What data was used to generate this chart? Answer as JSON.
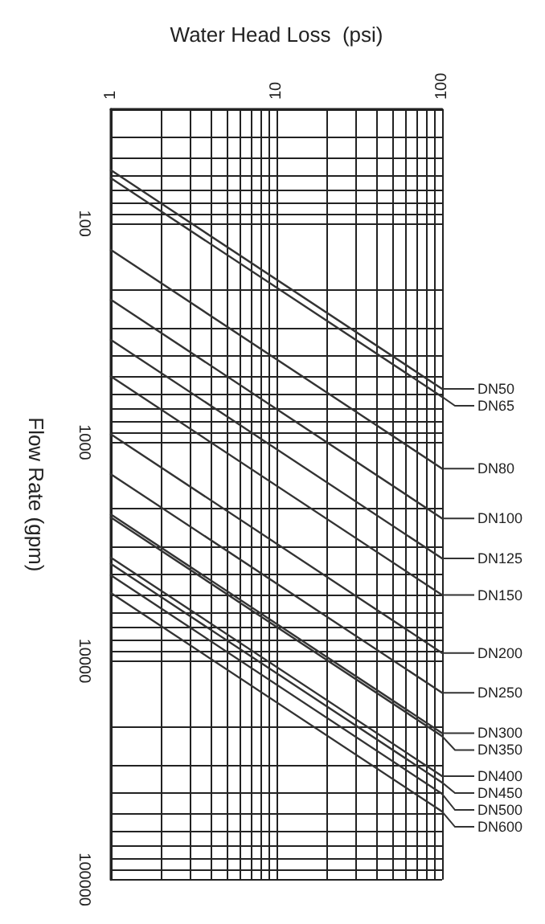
{
  "chart_data": {
    "type": "line",
    "xlabel": "Water Head Loss  (psi)",
    "ylabel": "Flow Rate (gpm)",
    "log": "xy",
    "x": [
      1,
      100
    ],
    "xlim": [
      1,
      100
    ],
    "xticks": [
      1,
      10,
      100
    ],
    "ylim": [
      100000,
      30
    ],
    "yticks": [
      100,
      1000,
      10000,
      100000
    ],
    "grid": true,
    "legend": "right",
    "marker": "none",
    "line_style": "solid",
    "series": [
      {
        "name": "DN50",
        "color": "#333333",
        "values": [
          57,
          570
        ]
      },
      {
        "name": "DN65",
        "color": "#333333",
        "values": [
          62,
          620
        ]
      },
      {
        "name": "DN80",
        "color": "#333333",
        "values": [
          132,
          1320
        ]
      },
      {
        "name": "DN100",
        "color": "#333333",
        "values": [
          223,
          2230
        ]
      },
      {
        "name": "DN125",
        "color": "#333333",
        "values": [
          340,
          3400
        ]
      },
      {
        "name": "DN150",
        "color": "#333333",
        "values": [
          500,
          5000
        ]
      },
      {
        "name": "DN200",
        "color": "#333333",
        "values": [
          920,
          9200
        ]
      },
      {
        "name": "DN250",
        "color": "#333333",
        "values": [
          1400,
          14000
        ]
      },
      {
        "name": "DN300",
        "color": "#333333",
        "values": [
          2140,
          21400
        ]
      },
      {
        "name": "DN350",
        "color": "#333333",
        "values": [
          2210,
          22100
        ]
      },
      {
        "name": "DN400",
        "color": "#333333",
        "values": [
          3370,
          33700
        ]
      },
      {
        "name": "DN450",
        "color": "#333333",
        "values": [
          3600,
          36000
        ]
      },
      {
        "name": "DN500",
        "color": "#333333",
        "values": [
          4060,
          40600
        ]
      },
      {
        "name": "DN600",
        "color": "#333333",
        "values": [
          4890,
          48900
        ]
      }
    ]
  }
}
